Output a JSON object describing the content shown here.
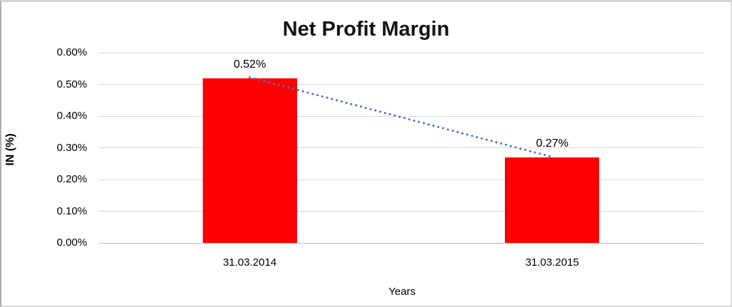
{
  "chart_data": {
    "type": "bar",
    "title": "Net Profit Margin",
    "xlabel": "Years",
    "ylabel": "IN (%)",
    "categories": [
      "31.03.2014",
      "31.03.2015"
    ],
    "series": [
      {
        "name": "Net Profit Margin",
        "values": [
          0.52,
          0.27
        ],
        "data_labels": [
          "0.52%",
          "0.27%"
        ]
      }
    ],
    "trendline": {
      "style": "dotted",
      "points": [
        0.52,
        0.27
      ]
    },
    "ylim": [
      0,
      0.6
    ],
    "yticks": [
      "0.60%",
      "0.50%",
      "0.40%",
      "0.30%",
      "0.20%",
      "0.10%",
      "0.00%"
    ],
    "ytick_values": [
      0.6,
      0.5,
      0.4,
      0.3,
      0.2,
      0.1,
      0.0
    ],
    "grid": "horizontal-on",
    "legend": "none",
    "colors": {
      "bar": "#FF0000",
      "trendline": "#4472C4",
      "gridline": "#D9D9D9",
      "axis_line": "#BFBFBF",
      "text": "#000000",
      "title": "#141414"
    }
  }
}
